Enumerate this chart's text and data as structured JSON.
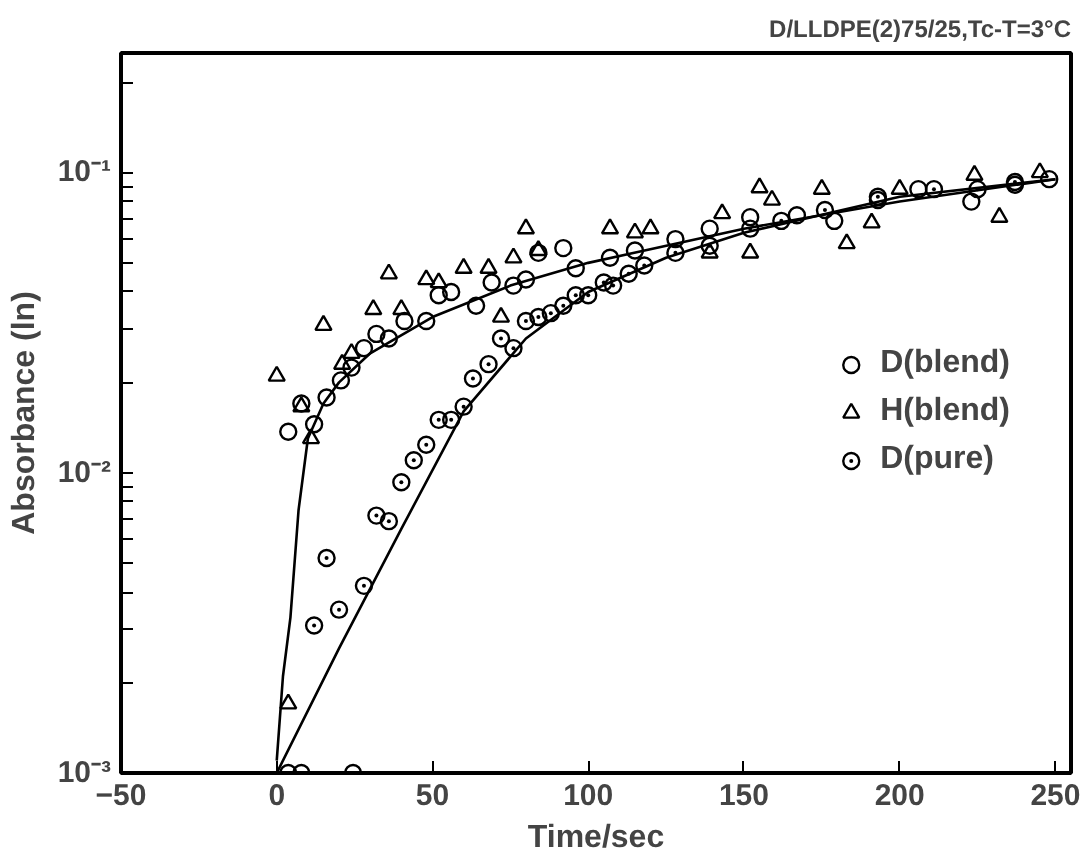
{
  "chart_data": {
    "type": "scatter",
    "title": "D/LLDPE(2)75/25,Tc-T=3°C",
    "xlabel": "Time/sec",
    "ylabel": "Absorbance (ln)",
    "log": "y",
    "legend": "right",
    "grid": false,
    "xlim": [
      -50,
      255
    ],
    "xticks": [
      -50,
      0,
      50,
      100,
      150,
      200,
      250
    ],
    "ylim": [
      0.001,
      0.25
    ],
    "yticks": [
      {
        "value": 0.001,
        "label": "10⁻³"
      },
      {
        "value": 0.002,
        "label": null
      },
      {
        "value": 0.003,
        "label": null
      },
      {
        "value": 0.004,
        "label": null
      },
      {
        "value": 0.005,
        "label": null
      },
      {
        "value": 0.006,
        "label": null
      },
      {
        "value": 0.007,
        "label": null
      },
      {
        "value": 0.008,
        "label": null
      },
      {
        "value": 0.009,
        "label": null
      },
      {
        "value": 0.01,
        "label": "10⁻²"
      },
      {
        "value": 0.02,
        "label": null
      },
      {
        "value": 0.03,
        "label": null
      },
      {
        "value": 0.04,
        "label": null
      },
      {
        "value": 0.05,
        "label": null
      },
      {
        "value": 0.06,
        "label": null
      },
      {
        "value": 0.07,
        "label": null
      },
      {
        "value": 0.08,
        "label": null
      },
      {
        "value": 0.09,
        "label": null
      },
      {
        "value": 0.1,
        "label": "10⁻¹"
      },
      {
        "value": 0.2,
        "label": null
      }
    ],
    "series": [
      {
        "name": "D(blend)",
        "color": "#000000",
        "marker": "circle",
        "x": [
          3.7,
          7.9,
          12,
          16,
          20.6,
          24,
          28,
          32,
          36,
          41,
          48,
          52,
          56,
          64,
          69,
          76,
          80,
          84,
          92,
          96,
          107,
          115,
          128,
          139,
          152,
          167,
          179,
          193,
          206,
          223,
          237,
          248
        ],
        "values": [
          0.0137,
          0.017,
          0.0145,
          0.0178,
          0.0203,
          0.0224,
          0.026,
          0.029,
          0.028,
          0.032,
          0.032,
          0.039,
          0.04,
          0.036,
          0.043,
          0.042,
          0.044,
          0.054,
          0.056,
          0.048,
          0.052,
          0.055,
          0.06,
          0.065,
          0.071,
          0.072,
          0.069,
          0.081,
          0.088,
          0.08,
          0.091,
          0.095
        ]
      },
      {
        "name": "H(blend)",
        "color": "#000000",
        "marker": "triangle",
        "x": [
          0,
          3.7,
          7.9,
          11,
          15,
          21,
          24,
          31,
          36,
          40,
          48,
          52,
          60,
          68,
          72,
          76,
          80,
          84,
          107,
          115,
          120,
          139,
          143,
          152,
          155,
          159,
          175,
          183,
          191,
          200,
          224,
          232,
          245
        ],
        "values": [
          0.021,
          0.0017,
          0.0166,
          0.013,
          0.031,
          0.023,
          0.025,
          0.035,
          0.046,
          0.035,
          0.044,
          0.043,
          0.048,
          0.048,
          0.033,
          0.052,
          0.065,
          0.055,
          0.065,
          0.063,
          0.065,
          0.054,
          0.073,
          0.054,
          0.089,
          0.081,
          0.088,
          0.058,
          0.068,
          0.088,
          0.098,
          0.071,
          0.1
        ]
      },
      {
        "name": "D(pure)",
        "color": "#000000",
        "marker": "circle_dot",
        "x": [
          3.7,
          7.9,
          12,
          16,
          20,
          24.5,
          28,
          32,
          36,
          40,
          44,
          48,
          52,
          56,
          60,
          63,
          68,
          72,
          76,
          80,
          84,
          88,
          92,
          96,
          100,
          105,
          108,
          113,
          118,
          128,
          139,
          152,
          162,
          176,
          193,
          211,
          225,
          237
        ],
        "values": [
          0.001,
          0.001,
          0.0031,
          0.0052,
          0.0035,
          0.001,
          0.0042,
          0.0072,
          0.0069,
          0.0093,
          0.011,
          0.0124,
          0.015,
          0.015,
          0.0166,
          0.0206,
          0.023,
          0.028,
          0.026,
          0.032,
          0.033,
          0.034,
          0.036,
          0.039,
          0.039,
          0.043,
          0.042,
          0.046,
          0.049,
          0.054,
          0.057,
          0.065,
          0.069,
          0.075,
          0.083,
          0.088,
          0.088,
          0.093
        ]
      },
      {
        "type": "line",
        "color": "#000000",
        "marker": "none",
        "x": [
          0,
          2,
          4.4,
          7,
          10,
          15,
          20,
          30,
          50,
          75,
          100,
          150,
          200,
          250
        ],
        "values": [
          0.0011,
          0.0021,
          0.0033,
          0.0075,
          0.013,
          0.017,
          0.02,
          0.025,
          0.033,
          0.042,
          0.05,
          0.065,
          0.08,
          0.095
        ]
      },
      {
        "type": "line",
        "color": "#000000",
        "marker": "none",
        "x": [
          0,
          20,
          40,
          60,
          80,
          100,
          125,
          150,
          200,
          250
        ],
        "values": [
          0.001,
          0.0026,
          0.0065,
          0.016,
          0.028,
          0.04,
          0.052,
          0.063,
          0.083,
          0.095
        ]
      }
    ]
  }
}
